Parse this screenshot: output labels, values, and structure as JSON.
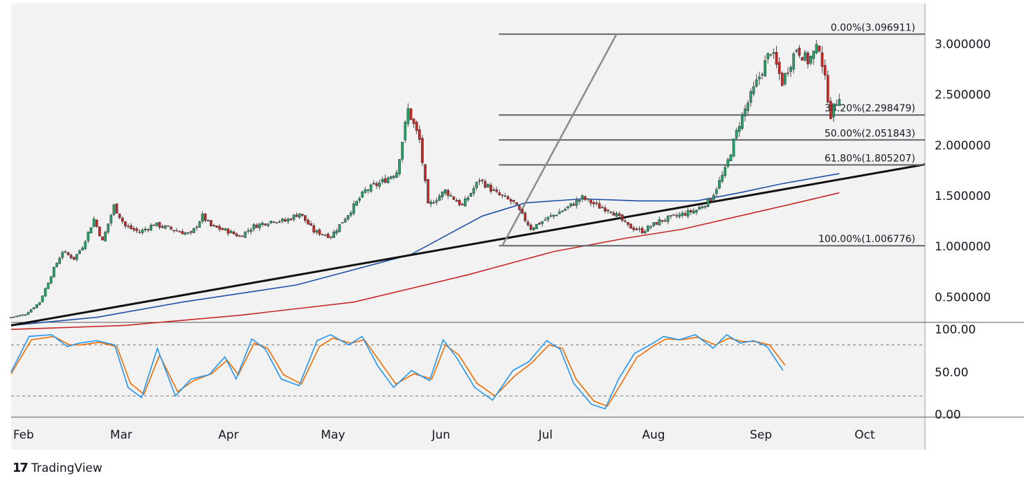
{
  "brand": {
    "name": "TradingView",
    "icon": "tradingview-logo-icon"
  },
  "colors": {
    "background": "#f2f2f2",
    "bull": "#26a269",
    "bear": "#c62828",
    "wick": "#4a4a4a",
    "ma_fast": "#1e4fa8",
    "ma_slow": "#c62828",
    "trendline": "#111111",
    "fib": "#5f6368",
    "stoch_k": "#2196f3",
    "stoch_d": "#ef6c00"
  },
  "chart_data": {
    "type": "candlestick",
    "price_axis": {
      "ticks": [
        "3.000000",
        "2.500000",
        "2.000000",
        "1.500000",
        "1.000000",
        "0.500000"
      ],
      "range": [
        0.25,
        3.4
      ]
    },
    "time_axis": [
      "Feb",
      "Mar",
      "Apr",
      "May",
      "Jun",
      "Jul",
      "Aug",
      "Sep",
      "Oct"
    ],
    "fib_levels": [
      {
        "label": "0.00%(3.096911)",
        "value": 3.096911
      },
      {
        "label": "38.20%(2.298479)",
        "value": 2.298479
      },
      {
        "label": "50.00%(2.051843)",
        "value": 2.051843
      },
      {
        "label": "61.80%(1.805207)",
        "value": 1.805207
      },
      {
        "label": "100.00%(1.006776)",
        "value": 1.006776
      }
    ],
    "fib_anchor_low": {
      "date_index": 172,
      "value": 1.006776
    },
    "fib_anchor_high": {
      "date_index": 212,
      "value": 3.096911
    },
    "trendline": {
      "start": {
        "date_index": 0,
        "value": 0.22
      },
      "end": {
        "date_index": 258,
        "value": 1.81
      }
    },
    "price_path": [
      [
        0,
        0.3
      ],
      [
        5,
        0.33
      ],
      [
        10,
        0.45
      ],
      [
        15,
        0.78
      ],
      [
        18,
        0.95
      ],
      [
        22,
        0.88
      ],
      [
        25,
        1.0
      ],
      [
        29,
        1.27
      ],
      [
        32,
        1.05
      ],
      [
        36,
        1.4
      ],
      [
        40,
        1.2
      ],
      [
        45,
        1.14
      ],
      [
        50,
        1.22
      ],
      [
        55,
        1.18
      ],
      [
        60,
        1.14
      ],
      [
        63,
        1.12
      ],
      [
        67,
        1.3
      ],
      [
        70,
        1.2
      ],
      [
        76,
        1.15
      ],
      [
        80,
        1.1
      ],
      [
        85,
        1.2
      ],
      [
        92,
        1.26
      ],
      [
        96,
        1.25
      ],
      [
        101,
        1.33
      ],
      [
        106,
        1.15
      ],
      [
        112,
        1.1
      ],
      [
        118,
        1.32
      ],
      [
        124,
        1.55
      ],
      [
        130,
        1.64
      ],
      [
        135,
        1.74
      ],
      [
        139,
        2.35
      ],
      [
        143,
        2.05
      ],
      [
        146,
        1.4
      ],
      [
        152,
        1.55
      ],
      [
        158,
        1.4
      ],
      [
        164,
        1.66
      ],
      [
        170,
        1.52
      ],
      [
        176,
        1.43
      ],
      [
        182,
        1.18
      ],
      [
        188,
        1.28
      ],
      [
        194,
        1.37
      ],
      [
        200,
        1.48
      ],
      [
        206,
        1.39
      ],
      [
        210,
        1.36
      ],
      [
        216,
        1.2
      ],
      [
        221,
        1.15
      ],
      [
        227,
        1.25
      ],
      [
        233,
        1.3
      ],
      [
        240,
        1.36
      ],
      [
        245,
        1.47
      ],
      [
        250,
        1.75
      ],
      [
        255,
        2.22
      ],
      [
        260,
        2.55
      ],
      [
        266,
        2.94
      ],
      [
        270,
        2.62
      ],
      [
        275,
        2.96
      ],
      [
        279,
        2.83
      ],
      [
        283,
        2.98
      ],
      [
        287,
        2.3
      ],
      [
        290,
        2.5
      ]
    ],
    "ma_fast": [
      [
        0,
        0.22
      ],
      [
        30,
        0.3
      ],
      [
        60,
        0.45
      ],
      [
        100,
        0.62
      ],
      [
        140,
        0.92
      ],
      [
        165,
        1.3
      ],
      [
        180,
        1.43
      ],
      [
        200,
        1.47
      ],
      [
        220,
        1.45
      ],
      [
        240,
        1.45
      ],
      [
        255,
        1.53
      ],
      [
        270,
        1.62
      ],
      [
        290,
        1.72
      ]
    ],
    "ma_slow": [
      [
        0,
        0.18
      ],
      [
        40,
        0.22
      ],
      [
        80,
        0.32
      ],
      [
        120,
        0.45
      ],
      [
        160,
        0.72
      ],
      [
        190,
        0.95
      ],
      [
        215,
        1.08
      ],
      [
        235,
        1.17
      ],
      [
        255,
        1.3
      ],
      [
        275,
        1.43
      ],
      [
        290,
        1.53
      ]
    ],
    "stochastic": {
      "axis_ticks": [
        "100.00",
        "50.00",
        "0.00"
      ],
      "upper_band": 80,
      "lower_band": 20,
      "k": [
        [
          0,
          48
        ],
        [
          8,
          90
        ],
        [
          18,
          92
        ],
        [
          25,
          78
        ],
        [
          30,
          82
        ],
        [
          38,
          85
        ],
        [
          46,
          80
        ],
        [
          52,
          30
        ],
        [
          58,
          18
        ],
        [
          65,
          76
        ],
        [
          73,
          20
        ],
        [
          80,
          40
        ],
        [
          88,
          45
        ],
        [
          95,
          66
        ],
        [
          100,
          40
        ],
        [
          107,
          87
        ],
        [
          113,
          75
        ],
        [
          120,
          40
        ],
        [
          128,
          32
        ],
        [
          136,
          85
        ],
        [
          142,
          92
        ],
        [
          150,
          80
        ],
        [
          156,
          90
        ],
        [
          163,
          55
        ],
        [
          170,
          30
        ],
        [
          178,
          50
        ],
        [
          186,
          38
        ],
        [
          192,
          86
        ],
        [
          198,
          65
        ],
        [
          206,
          30
        ],
        [
          214,
          15
        ],
        [
          223,
          50
        ],
        [
          230,
          60
        ],
        [
          238,
          85
        ],
        [
          244,
          75
        ],
        [
          250,
          35
        ],
        [
          258,
          10
        ],
        [
          264,
          5
        ],
        [
          270,
          40
        ],
        [
          277,
          70
        ],
        [
          284,
          80
        ],
        [
          290,
          90
        ],
        [
          297,
          86
        ],
        [
          304,
          92
        ],
        [
          312,
          76
        ],
        [
          318,
          92
        ],
        [
          324,
          82
        ],
        [
          330,
          85
        ],
        [
          336,
          78
        ],
        [
          343,
          50
        ]
      ],
      "d": [
        [
          0,
          46
        ],
        [
          9,
          86
        ],
        [
          19,
          90
        ],
        [
          26,
          80
        ],
        [
          31,
          80
        ],
        [
          39,
          83
        ],
        [
          47,
          78
        ],
        [
          53,
          35
        ],
        [
          59,
          22
        ],
        [
          66,
          68
        ],
        [
          74,
          25
        ],
        [
          81,
          38
        ],
        [
          89,
          46
        ],
        [
          96,
          62
        ],
        [
          101,
          45
        ],
        [
          108,
          82
        ],
        [
          114,
          76
        ],
        [
          121,
          45
        ],
        [
          129,
          34
        ],
        [
          137,
          78
        ],
        [
          143,
          88
        ],
        [
          151,
          82
        ],
        [
          157,
          86
        ],
        [
          164,
          60
        ],
        [
          171,
          34
        ],
        [
          179,
          46
        ],
        [
          187,
          40
        ],
        [
          193,
          80
        ],
        [
          199,
          68
        ],
        [
          207,
          35
        ],
        [
          215,
          20
        ],
        [
          224,
          44
        ],
        [
          231,
          58
        ],
        [
          239,
          80
        ],
        [
          245,
          76
        ],
        [
          251,
          40
        ],
        [
          259,
          14
        ],
        [
          265,
          8
        ],
        [
          271,
          34
        ],
        [
          278,
          65
        ],
        [
          285,
          78
        ],
        [
          291,
          87
        ],
        [
          298,
          86
        ],
        [
          305,
          89
        ],
        [
          313,
          80
        ],
        [
          319,
          88
        ],
        [
          325,
          84
        ],
        [
          331,
          84
        ],
        [
          337,
          80
        ],
        [
          344,
          56
        ]
      ]
    }
  }
}
